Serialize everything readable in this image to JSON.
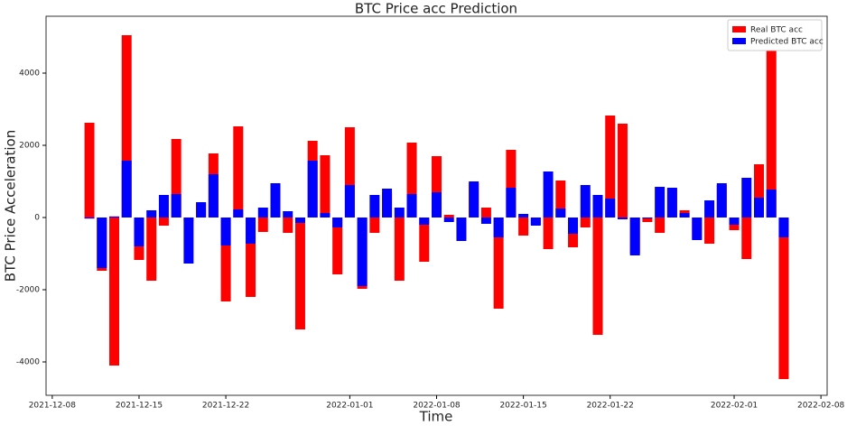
{
  "chart_data": {
    "type": "bar",
    "title": "BTC Price acc Prediction",
    "xlabel": "Time",
    "ylabel": "BTC Price Acceleration",
    "x": [
      "2021-12-11",
      "2021-12-12",
      "2021-12-13",
      "2021-12-14",
      "2021-12-15",
      "2021-12-16",
      "2021-12-17",
      "2021-12-18",
      "2021-12-19",
      "2021-12-20",
      "2021-12-21",
      "2021-12-22",
      "2021-12-23",
      "2021-12-24",
      "2021-12-25",
      "2021-12-26",
      "2021-12-27",
      "2021-12-28",
      "2021-12-29",
      "2021-12-30",
      "2021-12-31",
      "2022-01-01",
      "2022-01-02",
      "2022-01-03",
      "2022-01-04",
      "2022-01-05",
      "2022-01-06",
      "2022-01-07",
      "2022-01-08",
      "2022-01-09",
      "2022-01-10",
      "2022-01-11",
      "2022-01-12",
      "2022-01-13",
      "2022-01-14",
      "2022-01-15",
      "2022-01-16",
      "2022-01-17",
      "2022-01-18",
      "2022-01-19",
      "2022-01-20",
      "2022-01-21",
      "2022-01-22",
      "2022-01-23",
      "2022-01-24",
      "2022-01-25",
      "2022-01-26",
      "2022-01-27",
      "2022-01-28",
      "2022-01-29",
      "2022-01-30",
      "2022-01-31",
      "2022-02-01",
      "2022-02-02",
      "2022-02-03",
      "2022-02-04",
      "2022-02-05"
    ],
    "series": [
      {
        "name": "Real BTC acc",
        "color": "#ff0000",
        "values": [
          2625,
          -1475,
          -4100,
          5050,
          -1175,
          -1750,
          -225,
          2175,
          -100,
          400,
          1775,
          -2325,
          2525,
          -2200,
          -400,
          900,
          -425,
          -3100,
          2125,
          1725,
          -1575,
          2500,
          -1975,
          -425,
          700,
          -1750,
          2075,
          -1225,
          1700,
          75,
          -600,
          950,
          275,
          -2525,
          1875,
          -500,
          -200,
          -875,
          1025,
          -825,
          -275,
          -3250,
          2825,
          2600,
          -1000,
          -125,
          -425,
          800,
          200,
          -600,
          -725,
          900,
          -350,
          -1150,
          1475,
          4625,
          -4475
        ]
      },
      {
        "name": "Predicted BTC acc",
        "color": "#0000ff",
        "values": [
          -30,
          -1400,
          30,
          1575,
          -800,
          200,
          625,
          650,
          -1275,
          425,
          1200,
          -775,
          225,
          -725,
          275,
          950,
          175,
          -150,
          1575,
          125,
          -275,
          900,
          -1900,
          625,
          800,
          275,
          650,
          -200,
          700,
          -125,
          -650,
          1000,
          -175,
          -550,
          825,
          100,
          -225,
          1275,
          250,
          -450,
          900,
          625,
          525,
          -50,
          -1050,
          -25,
          850,
          825,
          125,
          -625,
          475,
          950,
          -200,
          1100,
          550,
          775,
          -550
        ]
      }
    ],
    "xlim": [
      "2021-12-07T12:00",
      "2022-02-08T12:00"
    ],
    "xticks": [
      "2021-12-08",
      "2021-12-15",
      "2021-12-22",
      "2022-01-01",
      "2022-01-08",
      "2022-01-15",
      "2022-01-22",
      "2022-02-01",
      "2022-02-08"
    ],
    "ylim": [
      -4925,
      5575
    ],
    "yticks": [
      -4000,
      -2000,
      0,
      2000,
      4000
    ],
    "grid": false,
    "legend": "upper right"
  }
}
